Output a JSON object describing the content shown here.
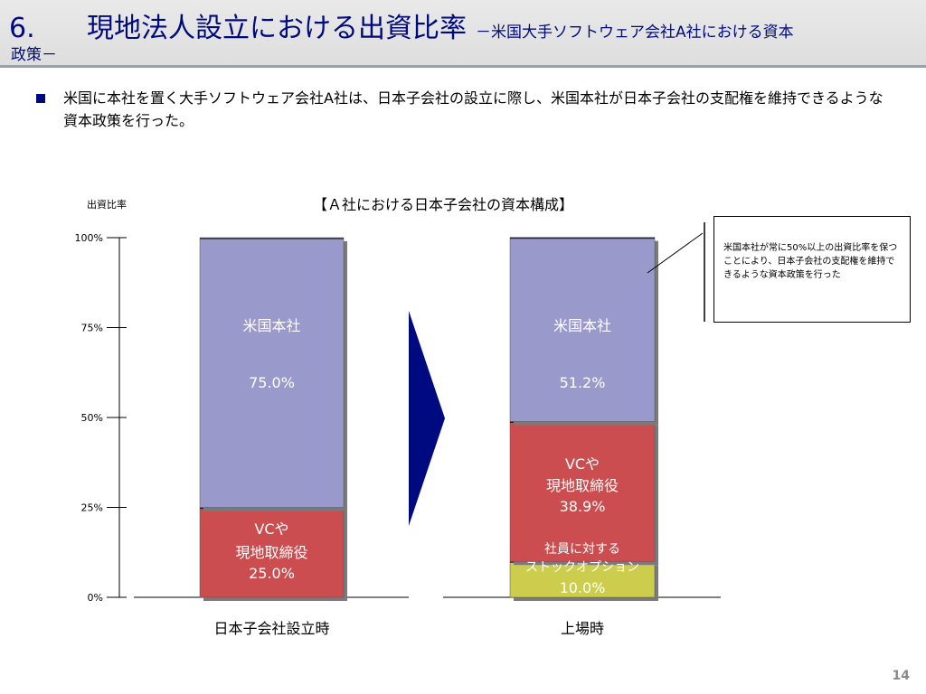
{
  "header": {
    "number": "6.",
    "title": "現地法人設立における出資比率",
    "subtitle_line1": "－米国大手ソフトウェア会社A社における資本",
    "subtitle_line2": "政策－"
  },
  "bullet": {
    "text": "米国に本社を置く大手ソフトウェア会社A社は、日本子会社の設立に際し、米国本社が日本子会社の支配権を維持できるような資本政策を行った。"
  },
  "callout": {
    "text": "米国本社が常に50%以上の出資比率を保つことにより、日本子会社の支配権を維持できるような資本政策を行った"
  },
  "page_number": "14",
  "colors": {
    "us_hq": "#9999cc",
    "vc": "#cc4d4f",
    "stock_option": "#cccc4d",
    "arrow": "#000a80",
    "title_text": "#000a7c"
  },
  "chart_data": {
    "type": "bar",
    "stacked": true,
    "title": "【Ａ社における日本子会社の資本構成】",
    "ylabel": "出資比率",
    "ylim": [
      0,
      100
    ],
    "yticks": [
      {
        "value": 0,
        "label": "0%"
      },
      {
        "value": 25,
        "label": "25%"
      },
      {
        "value": 50,
        "label": "50%"
      },
      {
        "value": 75,
        "label": "75%"
      },
      {
        "value": 100,
        "label": "100%"
      }
    ],
    "categories": [
      "日本子会社設立時",
      "上場時"
    ],
    "bars": [
      {
        "category": "日本子会社設立時",
        "segments": [
          {
            "key": "vc",
            "value": 25.0,
            "label_lines": [
              "VCや",
              "現地取締役",
              "25.0%"
            ]
          },
          {
            "key": "us_hq",
            "value": 75.0,
            "label_lines": [
              "米国本社",
              "",
              "75.0%"
            ]
          }
        ]
      },
      {
        "category": "上場時",
        "segments": [
          {
            "key": "stock_option",
            "value": 10.0,
            "label_lines": [
              "ストックオプション",
              "10.0%"
            ]
          },
          {
            "key": "vc",
            "value": 38.9,
            "label_lines": [
              "VCや",
              "現地取締役",
              "38.9%",
              "社員に対する"
            ]
          },
          {
            "key": "us_hq",
            "value": 51.2,
            "label_lines": [
              "米国本社",
              "",
              "51.2%"
            ]
          }
        ]
      }
    ]
  }
}
